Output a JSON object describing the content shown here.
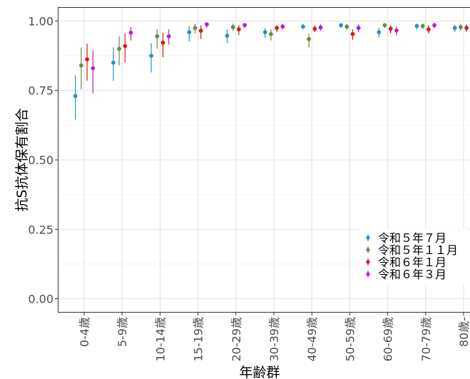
{
  "chart_data": {
    "type": "scatter",
    "xlabel": "年齢群",
    "ylabel": "抗S抗体保有割合",
    "ylim": [
      -0.05,
      1.05
    ],
    "yticks": [
      "0.00",
      "0.25",
      "0.50",
      "0.75",
      "1.00"
    ],
    "ytick_values": [
      0,
      0.25,
      0.5,
      0.75,
      1.0
    ],
    "categories": [
      "0-4歳",
      "5-9歳",
      "10-14歳",
      "15-19歳",
      "20-29歳",
      "30-39歳",
      "40-49歳",
      "50-59歳",
      "60-69歳",
      "70-79歳",
      "80歳-"
    ],
    "grid": true,
    "legend_position": "bottom-right",
    "series": [
      {
        "name": "令和５年７月",
        "color": "#2a8ec9",
        "values": [
          0.73,
          0.85,
          0.875,
          0.96,
          0.947,
          0.96,
          0.98,
          0.985,
          0.96,
          0.982,
          0.975
        ],
        "lower": [
          0.645,
          0.785,
          0.815,
          0.925,
          0.92,
          0.94,
          0.97,
          0.975,
          0.94,
          0.97,
          0.96
        ],
        "upper": [
          0.805,
          0.905,
          0.92,
          0.982,
          0.97,
          0.975,
          0.99,
          0.992,
          0.975,
          0.99,
          0.985
        ]
      },
      {
        "name": "令和５年１１月",
        "color": "#6b8a3a",
        "values": [
          0.84,
          0.9,
          0.945,
          0.975,
          0.978,
          0.953,
          0.935,
          0.98,
          0.985,
          0.982,
          0.978
        ],
        "lower": [
          0.755,
          0.84,
          0.9,
          0.955,
          0.965,
          0.93,
          0.905,
          0.97,
          0.975,
          0.97,
          0.965
        ],
        "upper": [
          0.905,
          0.945,
          0.97,
          0.99,
          0.99,
          0.97,
          0.955,
          0.99,
          0.99,
          0.99,
          0.99
        ]
      },
      {
        "name": "令和６年１月",
        "color": "#d7191c",
        "values": [
          0.862,
          0.91,
          0.922,
          0.965,
          0.97,
          0.975,
          0.972,
          0.953,
          0.972,
          0.97,
          0.975
        ],
        "lower": [
          0.785,
          0.85,
          0.87,
          0.935,
          0.95,
          0.96,
          0.96,
          0.932,
          0.955,
          0.955,
          0.96
        ],
        "upper": [
          0.918,
          0.955,
          0.958,
          0.985,
          0.985,
          0.985,
          0.985,
          0.97,
          0.985,
          0.985,
          0.988
        ]
      },
      {
        "name": "令和６年３月",
        "color": "#b023d6",
        "values": [
          0.83,
          0.958,
          0.945,
          0.988,
          0.985,
          0.98,
          0.977,
          0.975,
          0.966,
          0.985,
          0.99
        ],
        "lower": [
          0.74,
          0.93,
          0.915,
          0.975,
          0.975,
          0.97,
          0.965,
          0.96,
          0.948,
          0.975,
          0.98
        ],
        "upper": [
          0.895,
          0.978,
          0.97,
          0.995,
          0.993,
          0.99,
          0.988,
          0.988,
          0.98,
          0.993,
          0.996
        ]
      }
    ]
  }
}
